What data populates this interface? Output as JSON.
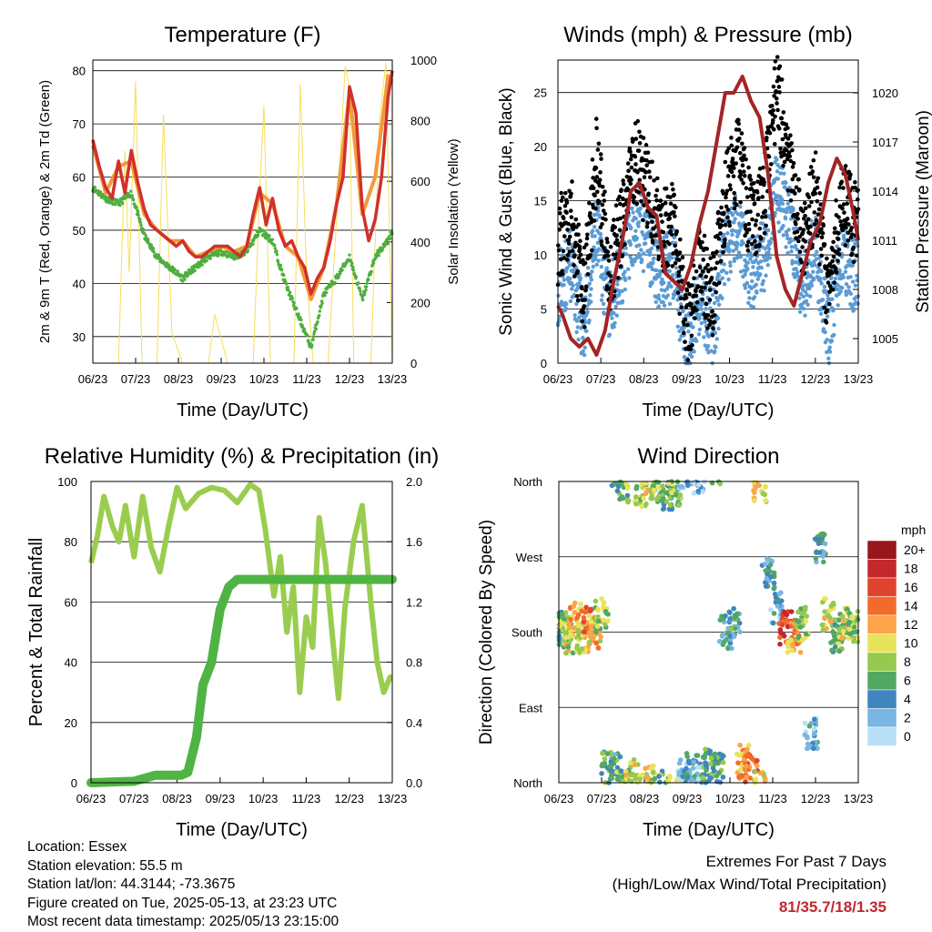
{
  "panels": {
    "temperature": {
      "title": "Temperature (F)",
      "ylabel_left": "2m & 9m T (Red, Orange) & 2m Td (Green)",
      "ylabel_right": "Solar Insolation (Yellow)",
      "xlabel": "Time (Day/UTC)",
      "x_ticks": [
        "06/23",
        "07/23",
        "08/23",
        "09/23",
        "10/23",
        "11/23",
        "12/23",
        "13/23"
      ],
      "y_left_ticks": [
        "30",
        "40",
        "50",
        "60",
        "70",
        "80"
      ],
      "y_right_ticks": [
        "0",
        "200",
        "400",
        "600",
        "800",
        "1000"
      ]
    },
    "winds": {
      "title": "Winds (mph) & Pressure (mb)",
      "ylabel_left": "Sonic Wind & Gust (Blue, Black)",
      "ylabel_right": "Station Pressure (Maroon)",
      "xlabel": "Time (Day/UTC)",
      "x_ticks": [
        "06/23",
        "07/23",
        "08/23",
        "09/23",
        "10/23",
        "11/23",
        "12/23",
        "13/23"
      ],
      "y_left_ticks": [
        "0",
        "5",
        "10",
        "15",
        "20",
        "25"
      ],
      "y_right_ticks": [
        "1005",
        "1008",
        "1011",
        "1014",
        "1017",
        "1020"
      ]
    },
    "humidity": {
      "title": "Relative Humidity (%) & Precipitation (in)",
      "ylabel_left": "Percent & Total Rainfall",
      "xlabel": "Time (Day/UTC)",
      "x_ticks": [
        "06/23",
        "07/23",
        "08/23",
        "09/23",
        "10/23",
        "11/23",
        "12/23",
        "13/23"
      ],
      "y_left_ticks": [
        "0",
        "20",
        "40",
        "60",
        "80",
        "100"
      ],
      "y_right_ticks": [
        "0.0",
        "0.4",
        "0.8",
        "1.2",
        "1.6",
        "2.0"
      ]
    },
    "direction": {
      "title": "Wind Direction",
      "ylabel_left": "Direction (Colored By Speed)",
      "xlabel": "Time (Day/UTC)",
      "x_ticks": [
        "06/23",
        "07/23",
        "08/23",
        "09/23",
        "10/23",
        "11/23",
        "12/23",
        "13/23"
      ],
      "y_left_ticks": [
        "North",
        "East",
        "South",
        "West",
        "North"
      ],
      "legend_title": "mph",
      "legend_labels": [
        "20+",
        "18",
        "16",
        "14",
        "12",
        "10",
        "8",
        "6",
        "4",
        "2",
        "0"
      ],
      "legend_colors": [
        "#99161b",
        "#c4272c",
        "#e0432e",
        "#f26b2b",
        "#fba44a",
        "#e9e35b",
        "#95c94f",
        "#52a862",
        "#3f86be",
        "#79b6e3",
        "#b7e0f7"
      ]
    }
  },
  "colors": {
    "temp_2m": "#d0302b",
    "temp_9m": "#f29a3a",
    "dewpoint": "#4fae3f",
    "solar": "#f7de5a",
    "gust": "#000000",
    "wind": "#5b9bd5",
    "pressure": "#a32525",
    "rh": "#9acd4f",
    "precip": "#4fb443"
  },
  "chart_data": [
    {
      "type": "line",
      "title": "Temperature (F)",
      "xlabel": "Time (Day/UTC)",
      "x_categories": [
        "06/23",
        "07/23",
        "08/23",
        "09/23",
        "10/23",
        "11/23",
        "12/23",
        "13/23"
      ],
      "ylim": [
        25,
        82
      ],
      "ylim_right": [
        0,
        1000
      ],
      "series": [
        {
          "name": "2m T (Red)",
          "x": [
            0,
            0.15,
            0.3,
            0.45,
            0.6,
            0.75,
            0.9,
            1.05,
            1.2,
            1.35,
            1.5,
            1.65,
            1.8,
            1.95,
            2.1,
            2.25,
            2.4,
            2.55,
            2.7,
            2.85,
            3.0,
            3.15,
            3.3,
            3.45,
            3.6,
            3.75,
            3.9,
            4.05,
            4.2,
            4.35,
            4.5,
            4.65,
            4.8,
            4.95,
            5.1,
            5.25,
            5.4,
            5.55,
            5.7,
            5.85,
            6.0,
            6.15,
            6.3,
            6.45,
            6.6,
            6.75,
            6.9,
            7.0
          ],
          "y": [
            67,
            62,
            58,
            56,
            63,
            57,
            65,
            59,
            54,
            51,
            50,
            49,
            48,
            47,
            48,
            46,
            45,
            45,
            46,
            47,
            47,
            47,
            46,
            45,
            47,
            53,
            58,
            51,
            56,
            50,
            47,
            48,
            45,
            43,
            38,
            41,
            43,
            48,
            55,
            60,
            77,
            72,
            54,
            48,
            52,
            60,
            75,
            80
          ]
        },
        {
          "name": "9m T (Orange)",
          "x": [
            0,
            0.3,
            0.6,
            0.9,
            1.2,
            1.5,
            1.8,
            2.1,
            2.4,
            2.7,
            3.0,
            3.3,
            3.6,
            3.9,
            4.2,
            4.5,
            4.8,
            5.1,
            5.4,
            5.7,
            6.0,
            6.3,
            6.6,
            6.9,
            7.0
          ],
          "y": [
            66,
            57,
            62,
            63,
            53,
            50,
            48,
            48,
            45,
            46,
            47,
            46,
            47,
            57,
            55,
            47,
            45,
            37,
            43,
            55,
            76,
            53,
            60,
            79,
            78
          ]
        },
        {
          "name": "2m Td (Green)",
          "x": [
            0,
            0.3,
            0.6,
            0.9,
            1.2,
            1.5,
            1.8,
            2.1,
            2.4,
            2.7,
            3.0,
            3.3,
            3.6,
            3.9,
            4.2,
            4.5,
            4.8,
            5.1,
            5.4,
            5.7,
            6.0,
            6.3,
            6.6,
            6.9,
            7.0
          ],
          "y": [
            58,
            56,
            55,
            57,
            49,
            45,
            43,
            41,
            43,
            45,
            46,
            45,
            46,
            50,
            48,
            40,
            34,
            28,
            38,
            41,
            45,
            37,
            45,
            48,
            50
          ]
        },
        {
          "name": "Solar Insolation (Yellow)",
          "x": [
            0,
            0.6,
            0.75,
            0.85,
            1.0,
            1.15,
            1.5,
            1.65,
            1.85,
            2.1,
            2.7,
            2.85,
            3.0,
            3.15,
            3.3,
            3.75,
            3.9,
            4.0,
            4.15,
            4.7,
            4.85,
            5.0,
            5.15,
            5.3,
            5.5,
            5.75,
            5.9,
            6.0,
            6.1,
            6.5,
            6.7,
            6.85,
            7.0
          ],
          "y": [
            0,
            0,
            700,
            300,
            930,
            0,
            0,
            820,
            100,
            0,
            0,
            160,
            80,
            0,
            0,
            0,
            570,
            850,
            0,
            0,
            920,
            280,
            0,
            0,
            0,
            600,
            980,
            900,
            0,
            0,
            800,
            990,
            0
          ]
        }
      ]
    },
    {
      "type": "line",
      "title": "Winds (mph) & Pressure (mb)",
      "xlabel": "Time (Day/UTC)",
      "x_categories": [
        "06/23",
        "07/23",
        "08/23",
        "09/23",
        "10/23",
        "11/23",
        "12/23",
        "13/23"
      ],
      "ylim": [
        0,
        28
      ],
      "ylim_right": [
        1003.5,
        1022
      ],
      "series": [
        {
          "name": "Station Pressure (Maroon)",
          "x": [
            0,
            0.1,
            0.3,
            0.5,
            0.7,
            0.9,
            1.1,
            1.3,
            1.5,
            1.7,
            1.9,
            2.1,
            2.3,
            2.5,
            2.7,
            2.9,
            3.1,
            3.3,
            3.5,
            3.7,
            3.9,
            4.1,
            4.3,
            4.5,
            4.7,
            4.9,
            5.1,
            5.3,
            5.5,
            5.7,
            5.9,
            6.1,
            6.3,
            6.5,
            6.7,
            6.9,
            7.0
          ],
          "y": [
            1007,
            1006.5,
            1005,
            1004.5,
            1005,
            1004,
            1005.5,
            1008.5,
            1011,
            1014,
            1014.5,
            1013,
            1012.5,
            1009,
            1008.5,
            1008,
            1009.5,
            1012,
            1014,
            1017,
            1020,
            1020,
            1021,
            1019.5,
            1018.5,
            1015,
            1010,
            1008,
            1007,
            1009,
            1011,
            1012,
            1014.5,
            1016,
            1015,
            1012.5,
            1011
          ]
        },
        {
          "name": "Sonic Wind (Blue)",
          "x": [
            0,
            0.3,
            0.6,
            0.9,
            1.2,
            1.5,
            1.8,
            2.1,
            2.4,
            2.7,
            3.0,
            3.3,
            3.6,
            3.9,
            4.2,
            4.5,
            4.8,
            5.1,
            5.4,
            5.7,
            6.0,
            6.3,
            6.6,
            6.9,
            7.0
          ],
          "y": [
            7,
            9,
            3,
            12,
            5,
            9,
            13,
            11,
            8,
            9,
            1,
            6,
            3,
            10,
            13,
            8,
            10,
            16,
            13,
            7,
            11,
            3,
            10,
            8,
            9
          ]
        },
        {
          "name": "Gust (Black)",
          "x": [
            0,
            0.3,
            0.6,
            0.9,
            1.2,
            1.5,
            1.8,
            2.1,
            2.4,
            2.7,
            3.0,
            3.3,
            3.6,
            3.9,
            4.2,
            4.5,
            4.8,
            5.1,
            5.4,
            5.7,
            6.0,
            6.3,
            6.6,
            6.9,
            7.0
          ],
          "y": [
            11,
            14,
            6,
            19,
            8,
            13,
            19,
            16,
            12,
            13,
            3,
            9,
            6,
            15,
            19,
            13,
            15,
            25,
            19,
            11,
            16,
            5,
            15,
            13,
            13
          ]
        }
      ]
    },
    {
      "type": "line",
      "title": "Relative Humidity (%) & Precipitation (in)",
      "xlabel": "Time (Day/UTC)",
      "x_categories": [
        "06/23",
        "07/23",
        "08/23",
        "09/23",
        "10/23",
        "11/23",
        "12/23",
        "13/23"
      ],
      "ylim": [
        0,
        100
      ],
      "ylim_right": [
        0,
        2.0
      ],
      "series": [
        {
          "name": "Relative Humidity",
          "x": [
            0,
            0.15,
            0.3,
            0.5,
            0.65,
            0.8,
            1.0,
            1.2,
            1.4,
            1.6,
            1.8,
            2.0,
            2.2,
            2.5,
            2.8,
            3.1,
            3.4,
            3.7,
            3.9,
            4.05,
            4.25,
            4.4,
            4.55,
            4.7,
            4.85,
            5.0,
            5.15,
            5.3,
            5.45,
            5.6,
            5.75,
            5.9,
            6.1,
            6.3,
            6.5,
            6.65,
            6.8,
            6.95,
            7.0
          ],
          "y": [
            73,
            82,
            95,
            85,
            80,
            92,
            75,
            95,
            78,
            70,
            85,
            98,
            91,
            96,
            98,
            97,
            93,
            99,
            97,
            84,
            62,
            75,
            50,
            65,
            30,
            55,
            45,
            88,
            73,
            50,
            28,
            58,
            80,
            92,
            60,
            40,
            30,
            35,
            35
          ]
        },
        {
          "name": "Total Precipitation",
          "x": [
            0,
            1.0,
            1.5,
            2.1,
            2.25,
            2.45,
            2.6,
            2.8,
            3.0,
            3.2,
            3.4,
            3.6,
            7.0
          ],
          "y": [
            0,
            0.01,
            0.05,
            0.05,
            0.07,
            0.3,
            0.65,
            0.8,
            1.15,
            1.3,
            1.35,
            1.35,
            1.35
          ]
        }
      ]
    },
    {
      "type": "scatter",
      "title": "Wind Direction",
      "xlabel": "Time (Day/UTC)",
      "x_categories": [
        "06/23",
        "07/23",
        "08/23",
        "09/23",
        "10/23",
        "11/23",
        "12/23",
        "13/23"
      ],
      "ylim": [
        0,
        360
      ],
      "y_categories": [
        "North",
        "East",
        "South",
        "West",
        "North"
      ],
      "series": [
        {
          "name": "Direction",
          "x": [
            0.1,
            0.25,
            0.4,
            0.55,
            0.7,
            0.85,
            1.0,
            1.15,
            1.3,
            1.5,
            1.7,
            1.9,
            2.1,
            2.3,
            2.5,
            2.7,
            2.9,
            3.1,
            3.3,
            3.5,
            3.7,
            3.9,
            4.1,
            4.3,
            4.5,
            4.7,
            4.9,
            5.1,
            5.3,
            5.5,
            5.7,
            5.9,
            6.1,
            6.3,
            6.5,
            6.7,
            6.9
          ],
          "y": [
            185,
            170,
            195,
            175,
            190,
            180,
            200,
            20,
            15,
            355,
            10,
            350,
            5,
            355,
            345,
            350,
            10,
            15,
            5,
            20,
            15,
            180,
            190,
            25,
            15,
            355,
            250,
            210,
            185,
            175,
            190,
            60,
            280,
            200,
            175,
            190,
            185
          ],
          "speed": [
            7,
            9,
            12,
            10,
            14,
            11,
            8,
            6,
            5,
            7,
            9,
            8,
            10,
            7,
            6,
            8,
            3,
            4,
            2,
            5,
            6,
            3,
            5,
            12,
            14,
            10,
            4,
            3,
            16,
            12,
            8,
            3,
            4,
            10,
            7,
            9,
            8
          ]
        }
      ]
    }
  ],
  "footer": {
    "location": "Location: Essex",
    "elevation": "Station elevation: 55.5 m",
    "latlon": "Station lat/lon: 44.3144; -73.3675",
    "created": "Figure created on Tue, 2025-05-13, at 23:23 UTC",
    "timestamp": "Most recent data timestamp: 2025/05/13 23:15:00",
    "extremes_title": "Extremes For Past 7 Days",
    "extremes_sub": "(High/Low/Max Wind/Total Precipitation)",
    "extremes_values": "81/35.7/18/1.35"
  }
}
